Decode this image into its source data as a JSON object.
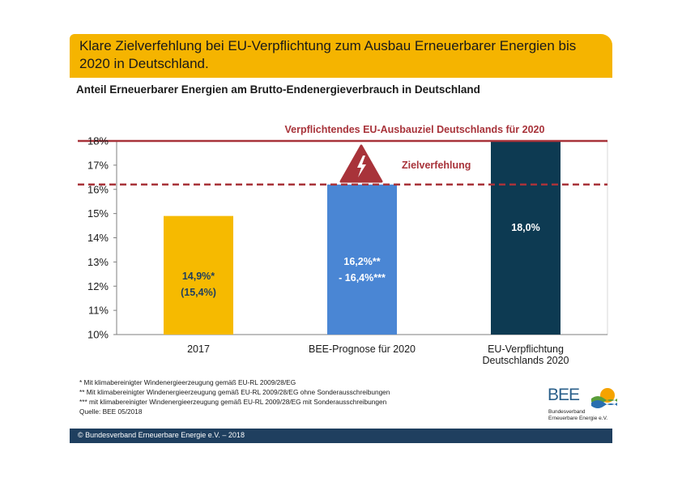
{
  "header": {
    "title": "Klare Zielverfehlung bei EU-Verpflichtung zum Ausbau Erneuerbarer Energien bis 2020 in Deutschland."
  },
  "subtitle": "Anteil Erneuerbarer Energien am Brutto-Endenergieverbrauch in Deutschland",
  "chart_data": {
    "type": "bar",
    "categories": [
      [
        "2017"
      ],
      [
        "BEE-Prognose für 2020"
      ],
      [
        "EU-Verpflichtung",
        "Deutschlands 2020"
      ]
    ],
    "values": [
      14.9,
      16.2,
      18.0
    ],
    "bar_labels": [
      [
        "14,9%*",
        "(15,4%)"
      ],
      [
        "16,2%**",
        "- 16,4%***"
      ],
      [
        "18,0%"
      ]
    ],
    "bar_colors": [
      "#f6ba00",
      "#4a86d4",
      "#0d3a52"
    ],
    "bar_label_colors": [
      "#1f3f5f",
      "#ffffff",
      "#ffffff"
    ],
    "ylim": [
      10,
      18
    ],
    "yticks": [
      10,
      11,
      12,
      13,
      14,
      15,
      16,
      17,
      18
    ],
    "ytick_labels": [
      "10%",
      "11%",
      "12%",
      "13%",
      "14%",
      "15%",
      "16%",
      "17%",
      "18%"
    ],
    "target_line": {
      "value": 18,
      "label": "Verpflichtendes EU-Ausbauziel Deutschlands für 2020",
      "color": "#a8333a"
    },
    "forecast_line": {
      "value": 16.2,
      "label": "Zielverfehlung",
      "color": "#a8333a",
      "style": "dashed"
    },
    "warning_icon": "lightning-warning-triangle-icon"
  },
  "footnotes": [
    "* Mit klimabereinigter Windenergieerzeugung gemäß EU-RL 2009/28/EG",
    "** Mit klimabereinigter Windenergieerzeugung gemäß EU-RL 2009/28/EG ohne Sonderausschreibungen",
    "*** mit klimabereinigter Windenergieerzeugung gemäß EU-RL 2009/28/EG mit Sonderausschreibungen",
    "Quelle: BEE 05/2018"
  ],
  "logo": {
    "text": "BEE",
    "sub_line1": "Bundesverband",
    "sub_line2": "Erneuerbare Energie e.V."
  },
  "footer": {
    "text": "© Bundesverband Erneuerbare Energie e.V. – 2018",
    "bar_color": "#1f3f5f"
  }
}
